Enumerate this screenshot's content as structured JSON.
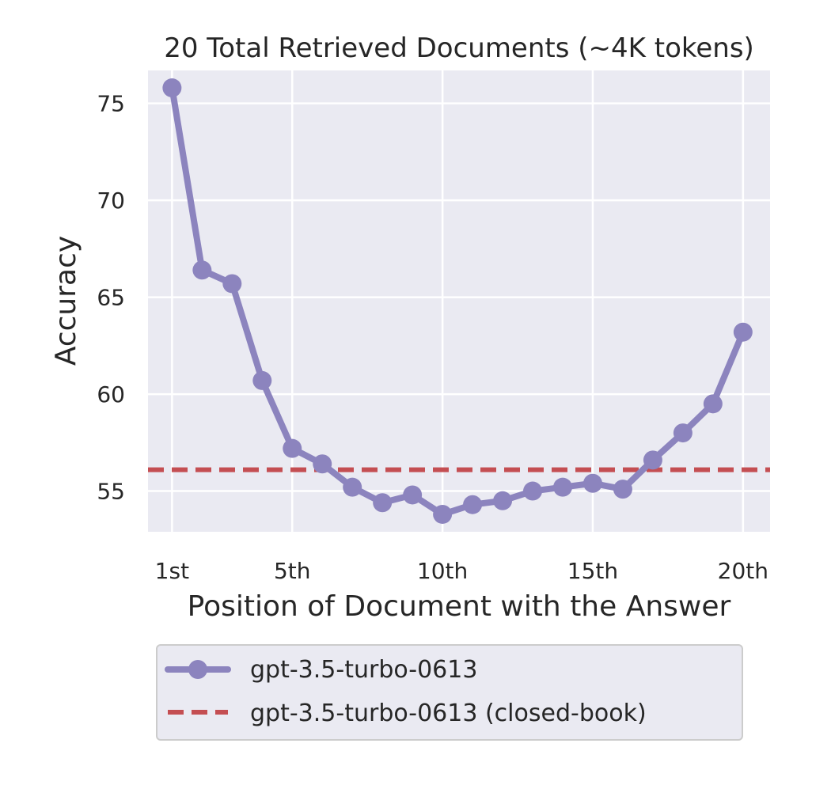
{
  "chart_data": {
    "type": "line",
    "title": "20 Total Retrieved Documents (~4K tokens)",
    "xlabel": "Position of Document with the Answer",
    "ylabel": "Accuracy",
    "xlim": [
      0.2,
      20.9
    ],
    "ylim": [
      52.9,
      76.7
    ],
    "xticks": [
      {
        "value": 1,
        "label": "1st"
      },
      {
        "value": 5,
        "label": "5th"
      },
      {
        "value": 10,
        "label": "10th"
      },
      {
        "value": 15,
        "label": "15th"
      },
      {
        "value": 20,
        "label": "20th"
      }
    ],
    "yticks": [
      55,
      60,
      65,
      70,
      75
    ],
    "grid": true,
    "background": "#EAEAF2",
    "legend_position": "below",
    "series": [
      {
        "name": "gpt-3.5-turbo-0613",
        "style": "line-with-markers",
        "color": "#8C84BE",
        "x": [
          1,
          2,
          3,
          4,
          5,
          6,
          7,
          8,
          9,
          10,
          11,
          12,
          13,
          14,
          15,
          16,
          17,
          18,
          19,
          20
        ],
        "y": [
          75.8,
          66.4,
          65.7,
          60.7,
          57.2,
          56.4,
          55.2,
          54.4,
          54.8,
          53.8,
          54.3,
          54.5,
          55.0,
          55.2,
          55.4,
          55.1,
          56.6,
          58.0,
          59.5,
          63.2
        ]
      },
      {
        "name": "gpt-3.5-turbo-0613 (closed-book)",
        "style": "dashed-horizontal",
        "color": "#C44E52",
        "y": 56.1
      }
    ]
  }
}
